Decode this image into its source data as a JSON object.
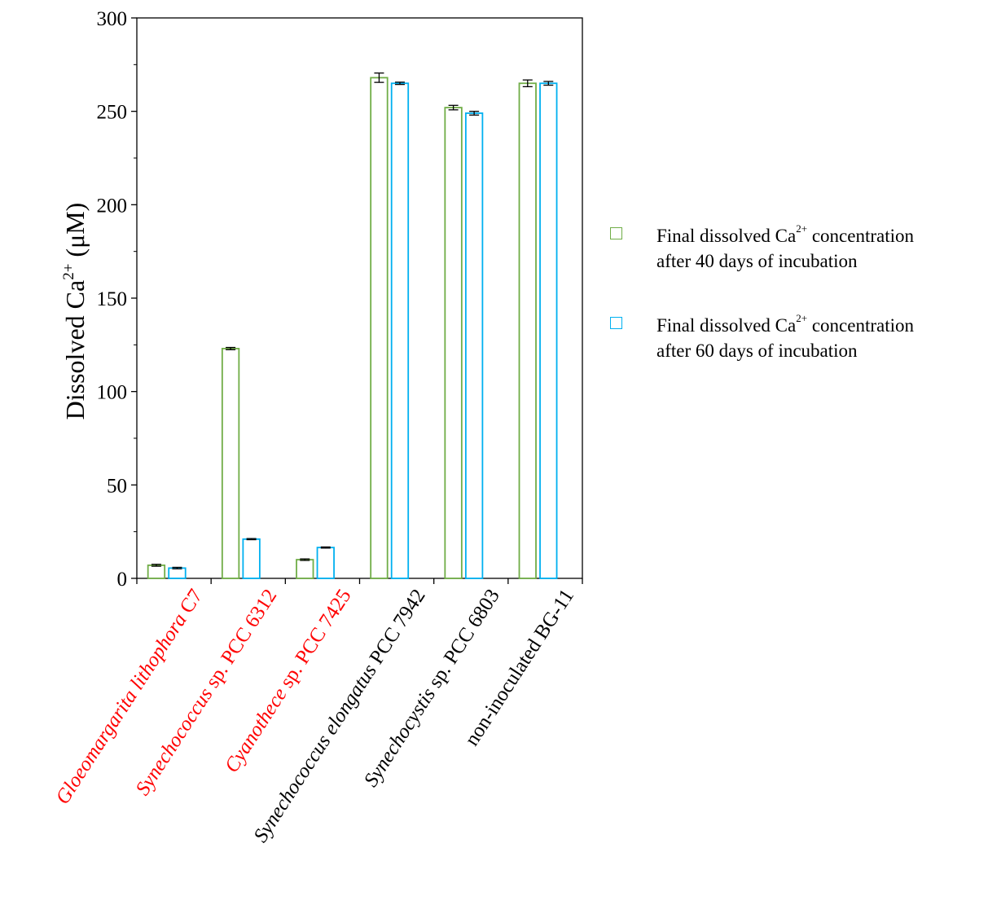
{
  "chart_data": {
    "type": "bar",
    "title": "",
    "xlabel": "",
    "ylabel": {
      "pre": "Dissolved Ca",
      "sup": "2+",
      "post": " (μM)"
    },
    "ylim": [
      0,
      300
    ],
    "yticks": [
      0,
      50,
      100,
      150,
      200,
      250,
      300
    ],
    "ytick_labels": [
      "0",
      "50",
      "100",
      "150",
      "200",
      "250",
      "300"
    ],
    "categories": [
      {
        "parts": [
          {
            "t": "Gloeomargarita lithophora",
            "i": true
          },
          {
            "t": " C7",
            "i": false
          }
        ],
        "color": "#ff0000"
      },
      {
        "parts": [
          {
            "t": "Synechococcus",
            "i": true
          },
          {
            "t": " sp. PCC 6312",
            "i": false
          }
        ],
        "color": "#ff0000"
      },
      {
        "parts": [
          {
            "t": "Cyanothece",
            "i": true
          },
          {
            "t": " sp. PCC 7425",
            "i": false
          }
        ],
        "color": "#ff0000"
      },
      {
        "parts": [
          {
            "t": "Synechococcus elongatus",
            "i": true
          },
          {
            "t": " PCC 7942",
            "i": false
          }
        ],
        "color": "#000000"
      },
      {
        "parts": [
          {
            "t": "Synechocystis",
            "i": true
          },
          {
            "t": " sp. PCC 6803",
            "i": false
          }
        ],
        "color": "#000000"
      },
      {
        "parts": [
          {
            "t": "non-inoculated BG-11",
            "i": false
          }
        ],
        "color": "#000000"
      }
    ],
    "series": [
      {
        "name": {
          "pre": "Final dissolved Ca",
          "sup": "2+",
          "post": " concentration",
          "line2": "after 40 days of incubation"
        },
        "color": "#70ad47",
        "values": [
          7,
          123,
          10,
          268,
          252,
          265
        ],
        "errors": [
          0.5,
          0.6,
          0.4,
          2.5,
          1.2,
          1.8
        ]
      },
      {
        "name": {
          "pre": "Final dissolved Ca",
          "sup": "2+",
          "post": " concentration",
          "line2": "after 60 days of incubation"
        },
        "color": "#00b0f0",
        "values": [
          5.5,
          21,
          16.5,
          265,
          249,
          265
        ],
        "errors": [
          0.4,
          0.3,
          0.3,
          0.6,
          1.0,
          1.0
        ]
      }
    ],
    "legend_position": "right",
    "grid": false
  }
}
